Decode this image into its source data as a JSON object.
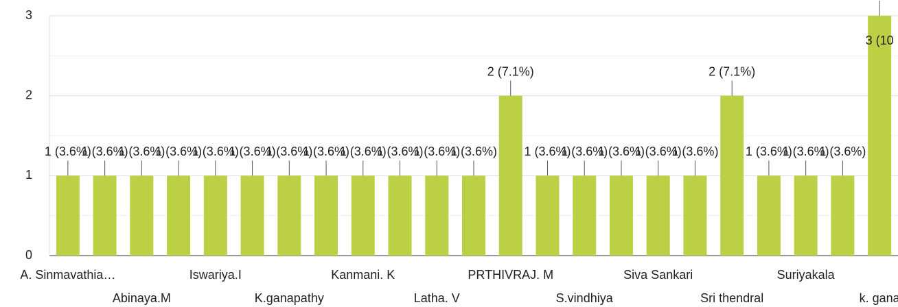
{
  "chart_data": {
    "type": "bar",
    "categories": [
      "A. Sinmavathia…",
      null,
      "Abinaya.M",
      null,
      "Iswariya.I",
      null,
      "K.ganapathy",
      null,
      "Kanmani. K",
      null,
      "Latha. V",
      null,
      "PRTHIVRAJ. M",
      null,
      "S.vindhiya",
      null,
      "Siva Sankari",
      null,
      "Sri thendral",
      null,
      "Suriyakala",
      null,
      "k. gana"
    ],
    "values": [
      1,
      1,
      1,
      1,
      1,
      1,
      1,
      1,
      1,
      1,
      1,
      1,
      2,
      1,
      1,
      1,
      1,
      1,
      2,
      1,
      1,
      1,
      3
    ],
    "value_labels": [
      "1 (3.6%)",
      "1 (3.6%)",
      "1 (3.6%)",
      "1 (3.6%)",
      "1 (3.6%)",
      "1 (3.6%)",
      "1 (3.6%)",
      "1 (3.6%)",
      "1 (3.6%)",
      "1 (3.6%)",
      "1 (3.6%)",
      "1 (3.6%)",
      "2 (7.1%)",
      "1 (3.6%)",
      "1 (3.6%)",
      "1 (3.6%)",
      "1 (3.6%)",
      "1 (3.6%)",
      "2 (7.1%)",
      "1 (3.6%)",
      "1 (3.6%)",
      "1 (3.6%)",
      "3 (10"
    ],
    "color": "#bcd045",
    "ylim": [
      0,
      3
    ],
    "yticks": [
      0,
      1,
      2,
      3
    ],
    "minor_yticks": [
      0.5,
      1.5,
      2.5
    ],
    "grid": true
  }
}
